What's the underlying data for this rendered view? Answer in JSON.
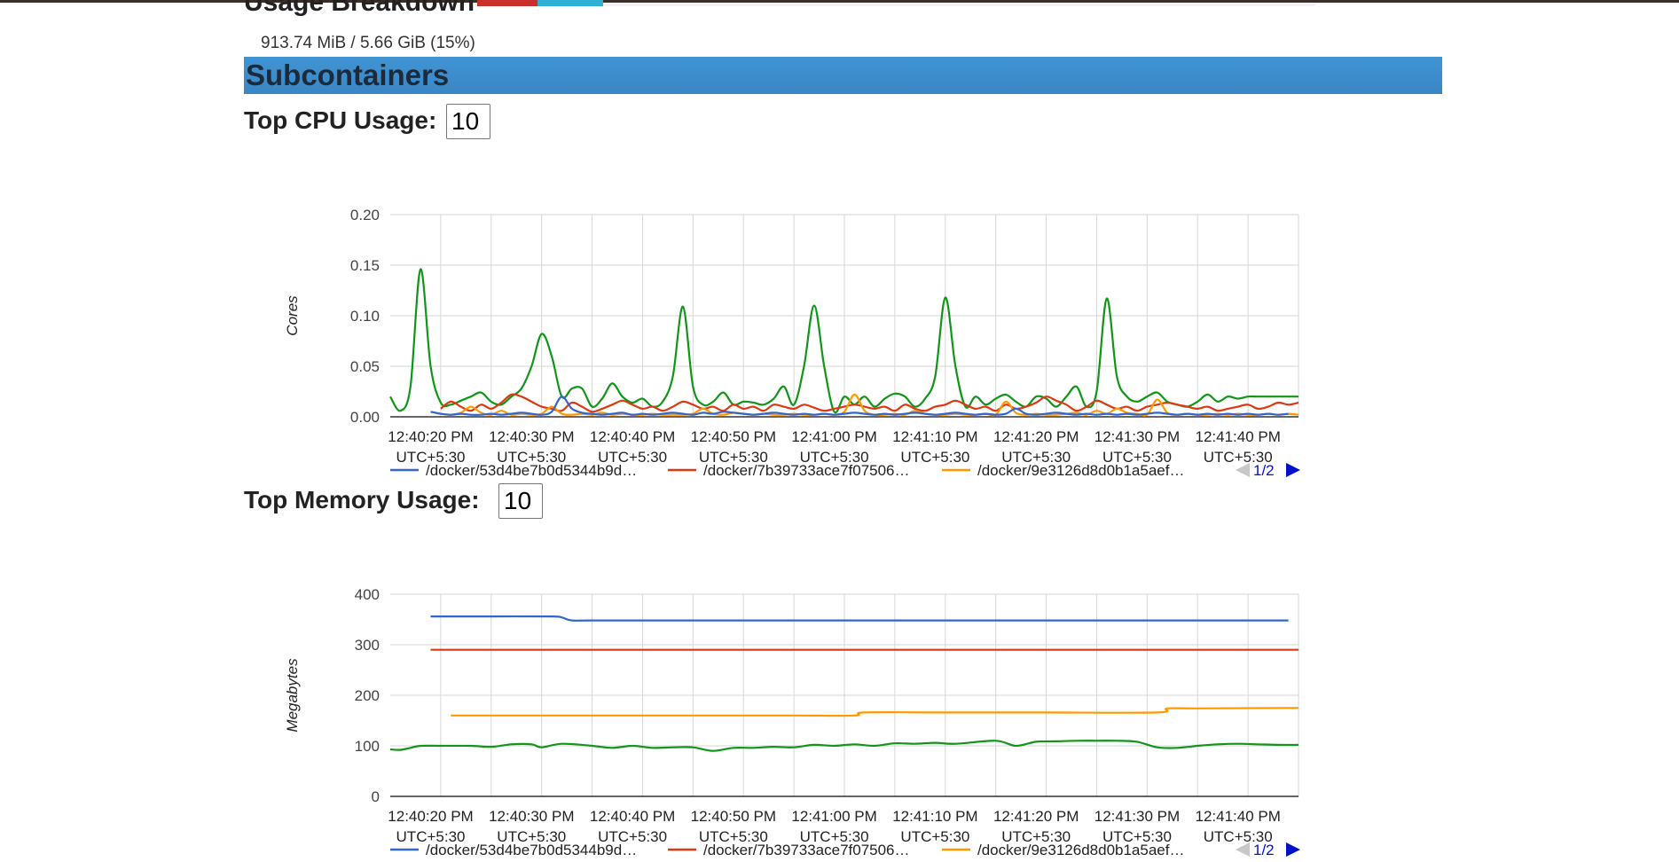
{
  "usage": {
    "title": "Usage Breakdown",
    "text": "913.74 MiB / 5.66 GiB (15%)"
  },
  "subcontainers": {
    "title": "Subcontainers"
  },
  "cpu": {
    "label": "Top CPU Usage:",
    "input_value": "10"
  },
  "memory": {
    "label": "Top Memory Usage:",
    "input_value": "10"
  },
  "colors": {
    "blue": "#3366cc",
    "red": "#dc3912",
    "orange": "#ff9900",
    "green": "#109618",
    "header": "#3a86c5"
  },
  "chart_data": [
    {
      "type": "line",
      "ylabel": "Cores",
      "ylim": [
        0,
        0.2
      ],
      "yticks": [
        "0.20",
        "0.15",
        "0.10",
        "0.05",
        "0.00"
      ],
      "ytick_values": [
        0.2,
        0.15,
        0.1,
        0.05,
        0
      ],
      "xlim": [
        0,
        90
      ],
      "x_tick_positions": [
        4,
        14,
        24,
        34,
        44,
        54,
        64,
        74,
        84
      ],
      "x_ticks": [
        [
          "12:40:20 PM",
          "UTC+5:30"
        ],
        [
          "12:40:30 PM",
          "UTC+5:30"
        ],
        [
          "12:40:40 PM",
          "UTC+5:30"
        ],
        [
          "12:40:50 PM",
          "UTC+5:30"
        ],
        [
          "12:41:00 PM",
          "UTC+5:30"
        ],
        [
          "12:41:10 PM",
          "UTC+5:30"
        ],
        [
          "12:41:20 PM",
          "UTC+5:30"
        ],
        [
          "12:41:30 PM",
          "UTC+5:30"
        ],
        [
          "12:41:40 PM",
          "UTC+5:30"
        ]
      ],
      "legend": [
        {
          "label": "/docker/53d4be7b0d5344b9d…",
          "color": "#3366cc"
        },
        {
          "label": "/docker/7b39733ace7f07506…",
          "color": "#dc3912"
        },
        {
          "label": "/docker/9e3126d8d0b1a5aef…",
          "color": "#ff9900"
        }
      ],
      "page_indicator": "1/2",
      "series": [
        {
          "color": "#109618",
          "x": [
            0,
            1,
            2,
            3,
            4,
            5,
            6,
            7,
            8,
            9,
            10,
            11,
            12,
            13,
            14,
            15,
            16,
            17,
            18,
            19,
            20,
            21,
            22,
            23,
            24,
            25,
            26,
            27,
            28,
            29,
            30,
            31,
            32,
            33,
            34,
            35,
            36,
            37,
            38,
            39,
            40,
            41,
            42,
            43,
            44,
            45,
            46,
            47,
            48,
            49,
            50,
            51,
            52,
            53,
            54,
            55,
            56,
            57,
            58,
            59,
            60,
            61,
            62,
            63,
            64,
            65,
            66,
            67,
            68,
            69,
            70,
            71,
            72,
            73,
            74,
            75,
            76,
            77,
            78,
            79,
            80,
            81,
            82,
            83,
            84,
            85,
            86,
            87,
            88,
            89,
            90
          ],
          "y": [
            0.02,
            0.006,
            0.03,
            0.146,
            0.05,
            0.014,
            0.012,
            0.016,
            0.02,
            0.024,
            0.015,
            0.012,
            0.02,
            0.028,
            0.05,
            0.082,
            0.06,
            0.02,
            0.028,
            0.028,
            0.01,
            0.018,
            0.033,
            0.02,
            0.014,
            0.018,
            0.01,
            0.015,
            0.04,
            0.109,
            0.03,
            0.012,
            0.015,
            0.024,
            0.012,
            0.015,
            0.014,
            0.012,
            0.018,
            0.03,
            0.012,
            0.05,
            0.11,
            0.05,
            0.005,
            0.02,
            0.012,
            0.02,
            0.01,
            0.018,
            0.023,
            0.02,
            0.01,
            0.018,
            0.04,
            0.118,
            0.05,
            0.01,
            0.02,
            0.012,
            0.018,
            0.022,
            0.015,
            0.01,
            0.02,
            0.018,
            0.01,
            0.02,
            0.03,
            0.01,
            0.025,
            0.117,
            0.04,
            0.02,
            0.015,
            0.02,
            0.024,
            0.015,
            0.012,
            0.01,
            0.015,
            0.022,
            0.015,
            0.02,
            0.018,
            0.02,
            0.02,
            0.02,
            0.02,
            0.02,
            0.02
          ]
        },
        {
          "color": "#dc3912",
          "x": [
            5,
            6,
            7,
            8,
            9,
            10,
            11,
            12,
            13,
            14,
            15,
            16,
            17,
            18,
            19,
            20,
            21,
            22,
            23,
            24,
            25,
            26,
            27,
            28,
            29,
            30,
            31,
            32,
            33,
            34,
            35,
            36,
            37,
            38,
            39,
            40,
            41,
            42,
            43,
            44,
            45,
            46,
            47,
            48,
            49,
            50,
            51,
            52,
            53,
            54,
            55,
            56,
            57,
            58,
            59,
            60,
            61,
            62,
            63,
            64,
            65,
            66,
            67,
            68,
            69,
            70,
            71,
            72,
            73,
            74,
            75,
            76,
            77,
            78,
            79,
            80,
            81,
            82,
            83,
            84,
            85,
            86,
            87,
            88,
            89,
            90
          ],
          "y": [
            0.008,
            0.015,
            0.01,
            0.006,
            0.012,
            0.008,
            0.014,
            0.022,
            0.02,
            0.015,
            0.01,
            0.008,
            0.006,
            0.014,
            0.01,
            0.005,
            0.008,
            0.012,
            0.016,
            0.012,
            0.008,
            0.01,
            0.006,
            0.01,
            0.015,
            0.012,
            0.008,
            0.01,
            0.006,
            0.012,
            0.008,
            0.01,
            0.006,
            0.012,
            0.01,
            0.008,
            0.012,
            0.009,
            0.006,
            0.008,
            0.01,
            0.012,
            0.01,
            0.008,
            0.01,
            0.006,
            0.012,
            0.008,
            0.006,
            0.01,
            0.012,
            0.016,
            0.012,
            0.008,
            0.01,
            0.006,
            0.012,
            0.008,
            0.01,
            0.014,
            0.02,
            0.016,
            0.012,
            0.006,
            0.01,
            0.016,
            0.012,
            0.008,
            0.01,
            0.006,
            0.01,
            0.012,
            0.014,
            0.012,
            0.01,
            0.008,
            0.01,
            0.006,
            0.008,
            0.01,
            0.012,
            0.008,
            0.01,
            0.014,
            0.012,
            0.014
          ]
        },
        {
          "color": "#ff9900",
          "x": [
            5,
            6,
            7,
            8,
            9,
            10,
            11,
            12,
            13,
            14,
            15,
            16,
            17,
            18,
            19,
            20,
            21,
            22,
            23,
            24,
            25,
            26,
            27,
            28,
            29,
            30,
            31,
            32,
            33,
            34,
            35,
            36,
            37,
            38,
            39,
            40,
            41,
            42,
            43,
            44,
            45,
            46,
            47,
            48,
            49,
            50,
            51,
            52,
            53,
            54,
            55,
            56,
            57,
            58,
            59,
            60,
            61,
            62,
            63,
            64,
            65,
            66,
            67,
            68,
            69,
            70,
            71,
            72,
            73,
            74,
            75,
            76,
            77,
            78,
            79,
            80,
            81,
            82,
            83,
            84,
            85,
            86,
            87,
            88,
            89,
            90
          ],
          "y": [
            0.003,
            0.002,
            0.004,
            0.01,
            0.004,
            0.002,
            0.006,
            0.002,
            0.003,
            0.002,
            0.003,
            0.01,
            0.003,
            0.002,
            0.003,
            0.002,
            0.004,
            0.002,
            0.003,
            0.002,
            0.002,
            0.003,
            0.002,
            0.002,
            0.002,
            0.003,
            0.008,
            0.003,
            0.002,
            0.004,
            0.003,
            0.002,
            0.003,
            0.002,
            0.002,
            0.003,
            0.002,
            0.002,
            0.003,
            0.002,
            0.005,
            0.022,
            0.006,
            0.002,
            0.002,
            0.003,
            0.002,
            0.006,
            0.003,
            0.002,
            0.002,
            0.003,
            0.002,
            0.002,
            0.003,
            0.002,
            0.015,
            0.004,
            0.002,
            0.003,
            0.002,
            0.002,
            0.003,
            0.004,
            0.002,
            0.006,
            0.003,
            0.008,
            0.004,
            0.003,
            0.002,
            0.017,
            0.004,
            0.002,
            0.003,
            0.002,
            0.002,
            0.003,
            0.002,
            0.003,
            0.002,
            0.002,
            0.003,
            0.002,
            0.003,
            0.002
          ]
        },
        {
          "color": "#3366cc",
          "x": [
            4,
            5,
            6,
            7,
            8,
            9,
            10,
            11,
            12,
            13,
            14,
            15,
            16,
            17,
            18,
            19,
            20,
            21,
            22,
            23,
            24,
            25,
            26,
            27,
            28,
            29,
            30,
            31,
            32,
            33,
            34,
            35,
            36,
            37,
            38,
            39,
            40,
            41,
            42,
            43,
            44,
            45,
            46,
            47,
            48,
            49,
            50,
            51,
            52,
            53,
            54,
            55,
            56,
            57,
            58,
            59,
            60,
            61,
            62,
            63,
            64,
            65,
            66,
            67,
            68,
            69,
            70,
            71,
            72,
            73,
            74,
            75,
            76,
            77,
            78,
            79,
            80,
            81,
            82,
            83,
            84,
            85,
            86,
            87,
            88,
            89
          ],
          "y": [
            0.005,
            0.003,
            0.002,
            0.003,
            0.002,
            0.002,
            0.003,
            0.002,
            0.003,
            0.004,
            0.003,
            0.002,
            0.005,
            0.02,
            0.008,
            0.004,
            0.003,
            0.002,
            0.003,
            0.004,
            0.002,
            0.003,
            0.002,
            0.003,
            0.004,
            0.003,
            0.002,
            0.004,
            0.003,
            0.005,
            0.004,
            0.003,
            0.002,
            0.003,
            0.004,
            0.003,
            0.002,
            0.003,
            0.002,
            0.003,
            0.002,
            0.003,
            0.004,
            0.003,
            0.002,
            0.003,
            0.002,
            0.003,
            0.004,
            0.003,
            0.002,
            0.003,
            0.004,
            0.003,
            0.002,
            0.003,
            0.002,
            0.003,
            0.008,
            0.003,
            0.002,
            0.003,
            0.004,
            0.003,
            0.002,
            0.003,
            0.002,
            0.003,
            0.002,
            0.003,
            0.002,
            0.003,
            0.004,
            0.003,
            0.002,
            0.003,
            0.002,
            0.003,
            0.002,
            0.003,
            0.002,
            0.003,
            0.002,
            0.003,
            0.002,
            0.003
          ]
        }
      ]
    },
    {
      "type": "line",
      "ylabel": "Megabytes",
      "ylim": [
        0,
        400
      ],
      "yticks": [
        "400",
        "300",
        "200",
        "100",
        "0"
      ],
      "ytick_values": [
        400,
        300,
        200,
        100,
        0
      ],
      "xlim": [
        0,
        90
      ],
      "x_tick_positions": [
        4,
        14,
        24,
        34,
        44,
        54,
        64,
        74,
        84
      ],
      "x_ticks": [
        [
          "12:40:20 PM",
          "UTC+5:30"
        ],
        [
          "12:40:30 PM",
          "UTC+5:30"
        ],
        [
          "12:40:40 PM",
          "UTC+5:30"
        ],
        [
          "12:40:50 PM",
          "UTC+5:30"
        ],
        [
          "12:41:00 PM",
          "UTC+5:30"
        ],
        [
          "12:41:10 PM",
          "UTC+5:30"
        ],
        [
          "12:41:20 PM",
          "UTC+5:30"
        ],
        [
          "12:41:30 PM",
          "UTC+5:30"
        ],
        [
          "12:41:40 PM",
          "UTC+5:30"
        ]
      ],
      "legend": [
        {
          "label": "/docker/53d4be7b0d5344b9d…",
          "color": "#3366cc"
        },
        {
          "label": "/docker/7b39733ace7f07506…",
          "color": "#dc3912"
        },
        {
          "label": "/docker/9e3126d8d0b1a5aef…",
          "color": "#ff9900"
        }
      ],
      "page_indicator": "1/2",
      "series": [
        {
          "color": "#3366cc",
          "x": [
            4,
            10,
            16,
            17,
            18,
            20,
            30,
            40,
            50,
            60,
            70,
            80,
            89
          ],
          "y": [
            356,
            356,
            356,
            354,
            348,
            348,
            348,
            348,
            348,
            348,
            348,
            348,
            348
          ]
        },
        {
          "color": "#dc3912",
          "x": [
            4,
            10,
            20,
            30,
            40,
            50,
            60,
            70,
            80,
            90
          ],
          "y": [
            290,
            290,
            290,
            290,
            290,
            290,
            290,
            290,
            290,
            290
          ]
        },
        {
          "color": "#ff9900",
          "x": [
            6,
            20,
            30,
            40,
            46,
            47,
            55,
            65,
            76,
            77,
            80,
            90
          ],
          "y": [
            160,
            160,
            160,
            160,
            160,
            166,
            166,
            166,
            166,
            174,
            174,
            175
          ]
        },
        {
          "color": "#109618",
          "x": [
            0,
            1,
            2,
            3,
            5,
            8,
            10,
            12,
            14,
            15,
            17,
            20,
            22,
            24,
            26,
            28,
            30,
            32,
            34,
            36,
            38,
            40,
            42,
            44,
            46,
            48,
            50,
            52,
            54,
            56,
            60,
            62,
            64,
            66,
            68,
            70,
            72,
            74,
            76,
            78,
            80,
            82,
            84,
            86,
            88,
            90
          ],
          "y": [
            93,
            92,
            96,
            100,
            100,
            100,
            98,
            103,
            103,
            97,
            104,
            100,
            96,
            100,
            96,
            97,
            97,
            90,
            96,
            96,
            98,
            97,
            102,
            100,
            103,
            100,
            105,
            104,
            106,
            104,
            110,
            100,
            108,
            109,
            110,
            110,
            110,
            108,
            97,
            96,
            100,
            103,
            104,
            103,
            102,
            102
          ]
        }
      ]
    }
  ]
}
